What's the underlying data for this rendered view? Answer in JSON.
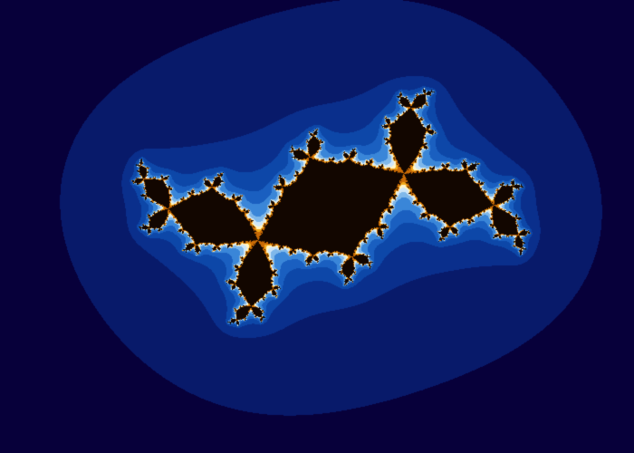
{
  "image": {
    "subject": "julia-set-fractal",
    "palette": {
      "background": "#07003a",
      "outer_glow_1": "#081a6a",
      "outer_glow_2": "#0a2f8c",
      "band_1": "#0d47a8",
      "band_2": "#1a5fc0",
      "band_3": "#3a86d8",
      "band_4": "#7fb8ea",
      "band_5": "#cfe6f7",
      "core_light": "#fff4c8",
      "core_mid": "#f0a81a",
      "core_deep": "#c86a05",
      "interior": "#120600"
    }
  }
}
